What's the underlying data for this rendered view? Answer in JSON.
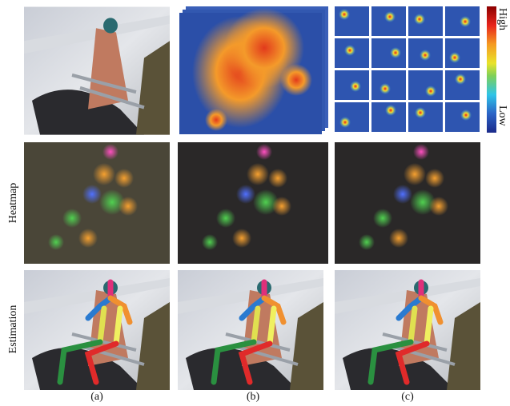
{
  "colorbar": {
    "high": "High",
    "low": "Low"
  },
  "row_labels": [
    "Heatmap",
    "Estimation"
  ],
  "column_labels": [
    "(a)",
    "(b)",
    "(c)"
  ]
}
